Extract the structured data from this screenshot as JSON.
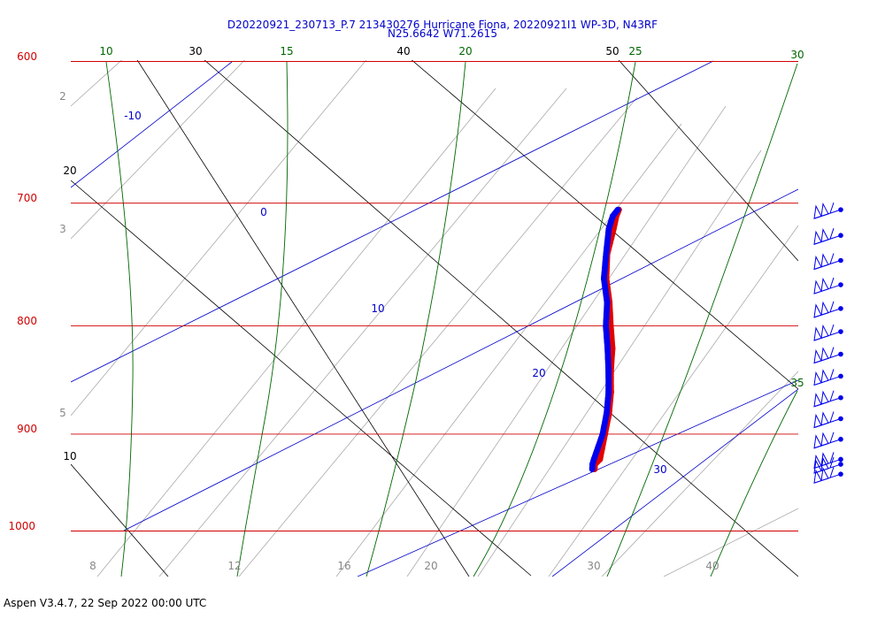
{
  "chart_data": {
    "type": "skew-t",
    "title_line1": "D20220921_230713_P.7 213430276 Hurricane Fiona, 20220921I1 WP-3D, N43RF",
    "title_line2": "N25.6642 W71.2615",
    "footer": "Aspen V3.4.7, 22 Sep 2022  00:00 UTC",
    "pressure_labels": [
      "600",
      "700",
      "800",
      "900",
      "1000"
    ],
    "pressure_values": [
      600,
      700,
      800,
      900,
      1000
    ],
    "bottom_labels": [
      "8",
      "12",
      "16",
      "20",
      "30",
      "40"
    ],
    "left_gray_labels": [
      "2",
      "3",
      "5"
    ],
    "left_black_labels": [
      "20",
      "10"
    ],
    "top_black_labels": [
      "30",
      "40",
      "50"
    ],
    "top_green_labels": [
      "10",
      "15",
      "20",
      "25",
      "30"
    ],
    "green_right_labels": [
      "30",
      "35"
    ],
    "blue_labels": [
      "-10",
      "0",
      "10",
      "20",
      "30"
    ],
    "colors": {
      "isobar": "#d00000",
      "isotherm": "#0000cc",
      "dry_adiabat": "#000000",
      "moist_adiabat": "#006600",
      "mixing_ratio": "#888888",
      "temperature": "#e00000",
      "dewpoint": "#0000ee",
      "wind_barb": "#0000ee"
    },
    "profile": {
      "pressure": [
        935,
        930,
        925,
        900,
        880,
        860,
        840,
        820,
        800,
        780,
        760,
        740,
        720,
        710,
        705
      ],
      "temperature_c": [
        24.7,
        24.4,
        24.5,
        23.3,
        22.3,
        21.1,
        19.7,
        18.4,
        16.8,
        15.2,
        13.4,
        11.9,
        10.8,
        10.2,
        10.0
      ],
      "dewpoint_c": [
        24.5,
        24.2,
        24.0,
        23.1,
        22.1,
        20.9,
        19.5,
        18.0,
        16.4,
        15.0,
        13.2,
        11.8,
        10.4,
        9.9,
        9.9
      ]
    },
    "wind_barbs": {
      "pressure": [
        705,
        725,
        745,
        765,
        785,
        805,
        825,
        845,
        865,
        885,
        905,
        925,
        930,
        940
      ],
      "direction_deg": [
        60,
        60,
        60,
        60,
        60,
        60,
        60,
        60,
        60,
        60,
        60,
        60,
        60,
        60
      ],
      "speed_kt": [
        65,
        65,
        65,
        65,
        65,
        65,
        65,
        65,
        65,
        65,
        65,
        65,
        65,
        65
      ]
    }
  }
}
